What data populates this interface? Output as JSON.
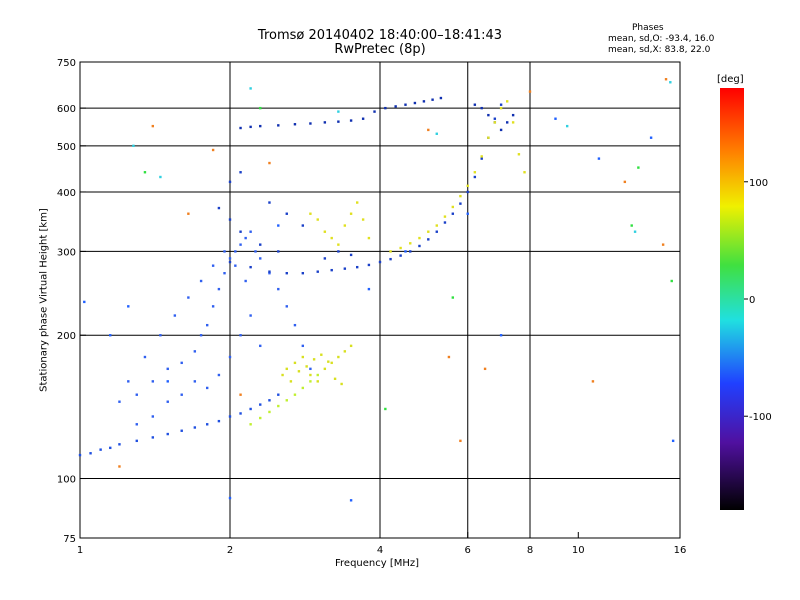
{
  "figure": {
    "title_line1": "Tromsø 20140402 18:40:00–18:41:43",
    "title_line2": "RwPretec (8p)",
    "phases_title": "Phases",
    "phases_line1": "mean, sd,O: -93.4, 16.0",
    "phases_line2": "mean, sd,X: 83.8, 22.0"
  },
  "chart_data": {
    "type": "scatter",
    "xlabel": "Frequency [MHz]",
    "ylabel": "Stationary phase Virtual Height [km]",
    "x_scale": "log",
    "y_scale": "log",
    "xlim": [
      1,
      16
    ],
    "ylim": [
      75,
      750
    ],
    "x_ticks": [
      1,
      2,
      4,
      6,
      8,
      10,
      16
    ],
    "y_ticks": [
      75,
      100,
      200,
      300,
      400,
      500,
      600,
      750
    ],
    "grid": true,
    "grid_x": [
      2,
      4,
      6,
      8,
      16
    ],
    "grid_y": [
      100,
      200,
      300,
      400,
      500,
      600
    ],
    "colorbar": {
      "label": "[deg]",
      "min": -180,
      "max": 180,
      "ticks": [
        100,
        0,
        -100
      ]
    },
    "series": [
      {
        "key": "o_trace_lower_edge",
        "color": "#2050e0",
        "points": [
          [
            1.0,
            112
          ],
          [
            1.05,
            113
          ],
          [
            1.1,
            115
          ],
          [
            1.15,
            116
          ],
          [
            1.2,
            118
          ],
          [
            1.3,
            120
          ],
          [
            1.4,
            122
          ],
          [
            1.5,
            124
          ],
          [
            1.6,
            126
          ],
          [
            1.7,
            128
          ],
          [
            1.8,
            130
          ],
          [
            1.9,
            132
          ],
          [
            2.0,
            135
          ],
          [
            2.1,
            137
          ],
          [
            2.2,
            140
          ],
          [
            2.3,
            143
          ],
          [
            2.4,
            146
          ],
          [
            2.5,
            150
          ]
        ]
      },
      {
        "key": "o_trace_e_f1_cloud",
        "color": "#3060f0",
        "points": [
          [
            1.2,
            145
          ],
          [
            1.3,
            150
          ],
          [
            1.4,
            160
          ],
          [
            1.5,
            170
          ],
          [
            1.6,
            175
          ],
          [
            1.7,
            185
          ],
          [
            1.75,
            200
          ],
          [
            1.8,
            210
          ],
          [
            1.85,
            230
          ],
          [
            1.9,
            250
          ],
          [
            1.95,
            270
          ],
          [
            2.0,
            290
          ],
          [
            2.05,
            300
          ],
          [
            2.1,
            310
          ],
          [
            2.15,
            320
          ],
          [
            2.2,
            330
          ],
          [
            2.25,
            300
          ],
          [
            2.3,
            290
          ],
          [
            2.4,
            270
          ],
          [
            2.5,
            250
          ],
          [
            2.6,
            230
          ],
          [
            2.7,
            210
          ],
          [
            2.8,
            190
          ],
          [
            2.9,
            170
          ],
          [
            1.7,
            160
          ],
          [
            1.8,
            155
          ],
          [
            1.9,
            165
          ],
          [
            2.0,
            180
          ],
          [
            2.1,
            200
          ],
          [
            2.2,
            220
          ],
          [
            2.3,
            190
          ],
          [
            1.6,
            150
          ],
          [
            1.5,
            145
          ],
          [
            1.4,
            135
          ],
          [
            1.3,
            130
          ],
          [
            1.25,
            160
          ],
          [
            1.35,
            180
          ],
          [
            1.45,
            200
          ],
          [
            1.55,
            220
          ],
          [
            1.65,
            240
          ],
          [
            1.75,
            260
          ],
          [
            1.85,
            280
          ],
          [
            1.95,
            300
          ],
          [
            2.05,
            280
          ],
          [
            2.15,
            260
          ]
        ]
      },
      {
        "key": "o_trace_f2_band",
        "color": "#1a40c8",
        "points": [
          [
            2.0,
            285
          ],
          [
            2.2,
            278
          ],
          [
            2.4,
            272
          ],
          [
            2.6,
            270
          ],
          [
            2.8,
            270
          ],
          [
            3.0,
            272
          ],
          [
            3.2,
            274
          ],
          [
            3.4,
            276
          ],
          [
            3.6,
            278
          ],
          [
            3.8,
            281
          ],
          [
            4.0,
            285
          ],
          [
            4.2,
            289
          ],
          [
            4.4,
            294
          ],
          [
            4.6,
            300
          ],
          [
            4.8,
            308
          ],
          [
            5.0,
            318
          ],
          [
            5.2,
            330
          ],
          [
            5.4,
            345
          ],
          [
            5.6,
            360
          ],
          [
            5.8,
            378
          ],
          [
            6.0,
            400
          ],
          [
            6.2,
            430
          ],
          [
            6.4,
            470
          ],
          [
            6.6,
            520
          ],
          [
            6.8,
            570
          ],
          [
            7.0,
            610
          ],
          [
            3.1,
            290
          ],
          [
            3.3,
            300
          ],
          [
            3.5,
            295
          ],
          [
            2.5,
            300
          ],
          [
            2.3,
            310
          ],
          [
            2.1,
            330
          ],
          [
            2.0,
            350
          ],
          [
            1.9,
            370
          ],
          [
            2.0,
            420
          ],
          [
            2.1,
            440
          ],
          [
            2.4,
            380
          ],
          [
            2.6,
            360
          ],
          [
            2.8,
            340
          ]
        ]
      },
      {
        "key": "o_trace_top_band",
        "color": "#1030b0",
        "points": [
          [
            2.1,
            545
          ],
          [
            2.2,
            548
          ],
          [
            2.3,
            550
          ],
          [
            2.5,
            552
          ],
          [
            2.7,
            555
          ],
          [
            2.9,
            557
          ],
          [
            3.1,
            560
          ],
          [
            3.3,
            562
          ],
          [
            3.5,
            565
          ],
          [
            3.7,
            570
          ],
          [
            3.9,
            590
          ],
          [
            4.1,
            600
          ],
          [
            4.3,
            605
          ],
          [
            4.5,
            610
          ],
          [
            4.7,
            615
          ],
          [
            4.9,
            620
          ],
          [
            5.1,
            625
          ],
          [
            5.3,
            630
          ],
          [
            6.2,
            610
          ],
          [
            6.4,
            600
          ],
          [
            6.6,
            580
          ],
          [
            6.8,
            560
          ],
          [
            7.0,
            540
          ],
          [
            7.2,
            560
          ],
          [
            7.4,
            580
          ]
        ]
      },
      {
        "key": "x_trace_mid",
        "color": "#d8e020",
        "points": [
          [
            2.55,
            165
          ],
          [
            2.6,
            170
          ],
          [
            2.7,
            175
          ],
          [
            2.8,
            180
          ],
          [
            2.9,
            165
          ],
          [
            3.0,
            160
          ],
          [
            3.1,
            170
          ],
          [
            3.2,
            175
          ],
          [
            3.3,
            180
          ],
          [
            3.4,
            185
          ],
          [
            3.5,
            190
          ],
          [
            2.65,
            160
          ],
          [
            2.75,
            168
          ],
          [
            2.85,
            172
          ],
          [
            2.95,
            178
          ],
          [
            3.05,
            182
          ],
          [
            3.15,
            176
          ],
          [
            3.25,
            162
          ],
          [
            3.35,
            158
          ]
        ]
      },
      {
        "key": "x_trace_upper",
        "color": "#e0e020",
        "points": [
          [
            2.9,
            360
          ],
          [
            3.0,
            350
          ],
          [
            3.1,
            330
          ],
          [
            3.2,
            320
          ],
          [
            3.3,
            310
          ],
          [
            3.4,
            340
          ],
          [
            3.5,
            360
          ],
          [
            3.6,
            380
          ],
          [
            3.7,
            350
          ],
          [
            3.8,
            320
          ],
          [
            4.2,
            300
          ],
          [
            4.4,
            305
          ],
          [
            4.6,
            312
          ],
          [
            4.8,
            320
          ],
          [
            5.0,
            330
          ],
          [
            5.2,
            340
          ],
          [
            5.4,
            355
          ],
          [
            5.6,
            372
          ],
          [
            5.8,
            392
          ],
          [
            6.0,
            412
          ],
          [
            6.2,
            440
          ],
          [
            6.4,
            475
          ],
          [
            6.6,
            520
          ],
          [
            6.8,
            560
          ],
          [
            7.0,
            600
          ],
          [
            7.2,
            620
          ],
          [
            7.4,
            560
          ],
          [
            7.6,
            480
          ],
          [
            7.8,
            440
          ]
        ]
      },
      {
        "key": "x_trace_low",
        "color": "#c0f030",
        "points": [
          [
            2.2,
            130
          ],
          [
            2.3,
            134
          ],
          [
            2.4,
            138
          ],
          [
            2.5,
            142
          ],
          [
            2.6,
            146
          ],
          [
            2.7,
            150
          ],
          [
            2.8,
            155
          ],
          [
            2.9,
            160
          ],
          [
            3.0,
            165
          ]
        ]
      },
      {
        "key": "scatter_noise_orange",
        "color": "#f08020",
        "points": [
          [
            1.2,
            106
          ],
          [
            1.4,
            550
          ],
          [
            1.65,
            360
          ],
          [
            1.85,
            490
          ],
          [
            2.1,
            150
          ],
          [
            2.4,
            460
          ],
          [
            5.0,
            540
          ],
          [
            5.5,
            180
          ],
          [
            5.8,
            120
          ],
          [
            6.5,
            170
          ],
          [
            8.0,
            650
          ],
          [
            10.7,
            160
          ],
          [
            12.4,
            420
          ],
          [
            14.8,
            310
          ],
          [
            15.0,
            690
          ]
        ]
      },
      {
        "key": "scatter_noise_blue",
        "color": "#2060ff",
        "points": [
          [
            1.02,
            235
          ],
          [
            1.15,
            200
          ],
          [
            1.25,
            230
          ],
          [
            1.5,
            160
          ],
          [
            2.0,
            91
          ],
          [
            2.5,
            340
          ],
          [
            3.5,
            90
          ],
          [
            3.8,
            250
          ],
          [
            4.5,
            300
          ],
          [
            6.0,
            360
          ],
          [
            7.0,
            200
          ],
          [
            9.0,
            570
          ],
          [
            11.0,
            470
          ],
          [
            14.0,
            520
          ],
          [
            15.5,
            120
          ]
        ]
      },
      {
        "key": "scatter_noise_cyan",
        "color": "#30d0e0",
        "points": [
          [
            1.28,
            500
          ],
          [
            1.45,
            430
          ],
          [
            2.2,
            660
          ],
          [
            3.3,
            590
          ],
          [
            5.2,
            530
          ],
          [
            13.0,
            330
          ],
          [
            15.3,
            680
          ],
          [
            9.5,
            550
          ]
        ]
      },
      {
        "key": "scatter_noise_green",
        "color": "#30e040",
        "points": [
          [
            1.35,
            440
          ],
          [
            2.3,
            600
          ],
          [
            4.1,
            140
          ],
          [
            5.6,
            240
          ],
          [
            13.2,
            450
          ],
          [
            15.4,
            260
          ],
          [
            12.8,
            340
          ]
        ]
      }
    ]
  }
}
